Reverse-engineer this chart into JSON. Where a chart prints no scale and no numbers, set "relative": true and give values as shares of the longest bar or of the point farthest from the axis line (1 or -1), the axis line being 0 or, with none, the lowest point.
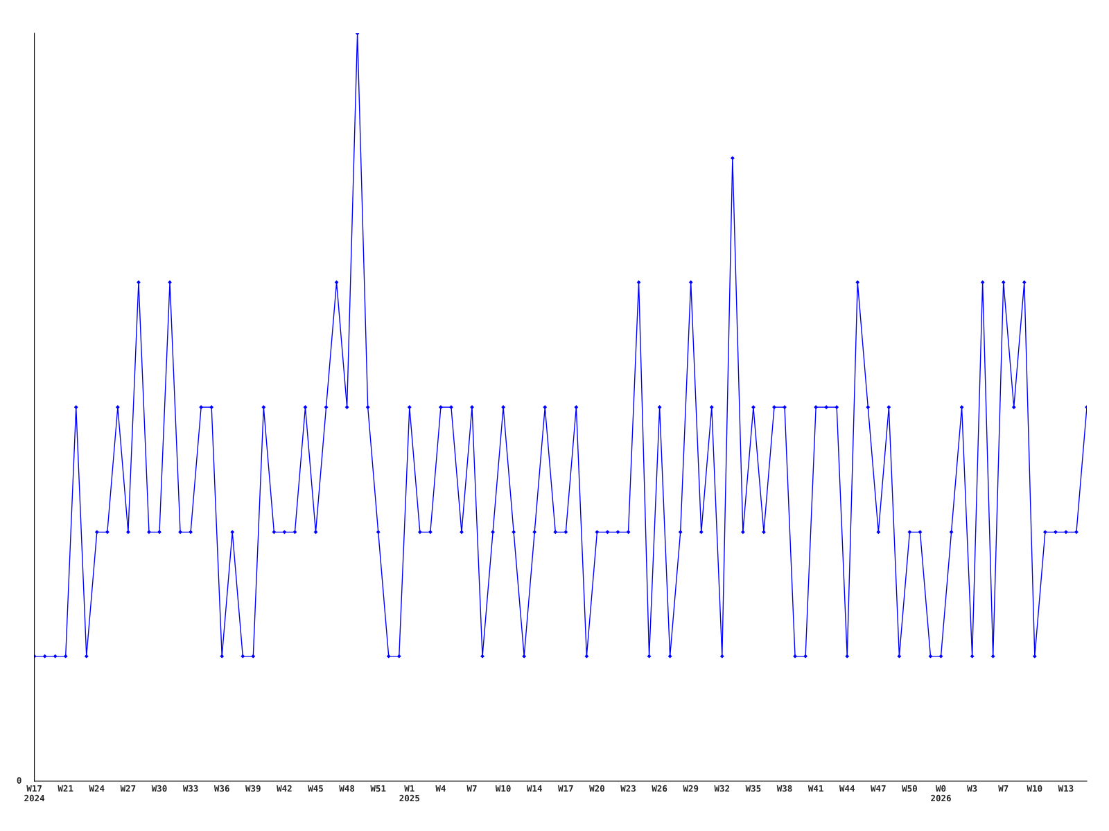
{
  "chart_data": {
    "type": "line",
    "relative": true,
    "marker": "diamond",
    "line_style": "solid",
    "grid": false,
    "legend": false,
    "annotations": [
      "0"
    ],
    "categories": [
      "W17\n2024",
      null,
      null,
      "W21",
      null,
      null,
      "W24",
      null,
      null,
      "W27",
      null,
      null,
      "W30",
      null,
      null,
      "W33",
      null,
      null,
      "W36",
      null,
      null,
      "W39",
      null,
      null,
      "W42",
      null,
      null,
      "W45",
      null,
      null,
      "W48",
      null,
      null,
      "W51",
      null,
      null,
      "W1\n2025",
      null,
      null,
      "W4",
      null,
      null,
      "W7",
      null,
      null,
      "W10",
      null,
      null,
      "W14",
      null,
      null,
      "W17",
      null,
      null,
      "W20",
      null,
      null,
      "W23",
      null,
      null,
      "W26",
      null,
      null,
      "W29",
      null,
      null,
      "W32",
      null,
      null,
      "W35",
      null,
      null,
      "W38",
      null,
      null,
      "W41",
      null,
      null,
      "W44",
      null,
      null,
      "W47",
      null,
      null,
      "W50",
      null,
      null,
      "W0\n2026",
      null,
      null,
      "W3",
      null,
      null,
      "W7",
      null,
      null,
      "W10",
      null,
      null,
      "W13",
      null,
      null
    ],
    "series": [
      {
        "color": "#0000ff",
        "values": [
          0.167,
          0.167,
          0.167,
          0.167,
          0.5,
          0.167,
          0.333,
          0.333,
          0.5,
          0.333,
          0.667,
          0.333,
          0.333,
          0.667,
          0.333,
          0.333,
          0.5,
          0.5,
          0.167,
          0.333,
          0.167,
          0.167,
          0.5,
          0.333,
          0.333,
          0.333,
          0.5,
          0.333,
          0.5,
          0.667,
          0.5,
          1,
          0.5,
          0.333,
          0.167,
          0.167,
          0.5,
          0.333,
          0.333,
          0.5,
          0.5,
          0.333,
          0.5,
          0.167,
          0.333,
          0.5,
          0.333,
          0.167,
          0.333,
          0.5,
          0.333,
          0.333,
          0.5,
          0.167,
          0.333,
          0.333,
          0.333,
          0.333,
          0.667,
          0.167,
          0.5,
          0.167,
          0.333,
          0.667,
          0.333,
          0.5,
          0.167,
          0.833,
          0.333,
          0.5,
          0.333,
          0.5,
          0.5,
          0.167,
          0.167,
          0.5,
          0.5,
          0.5,
          0.167,
          0.667,
          0.5,
          0.333,
          0.5,
          0.167,
          0.333,
          0.333,
          0.167,
          0.167,
          0.333,
          0.5,
          0.167,
          0.667,
          0.167,
          0.667,
          0.5,
          0.667,
          0.167,
          0.333,
          0.333,
          0.333,
          0.333,
          0.5
        ]
      }
    ]
  }
}
